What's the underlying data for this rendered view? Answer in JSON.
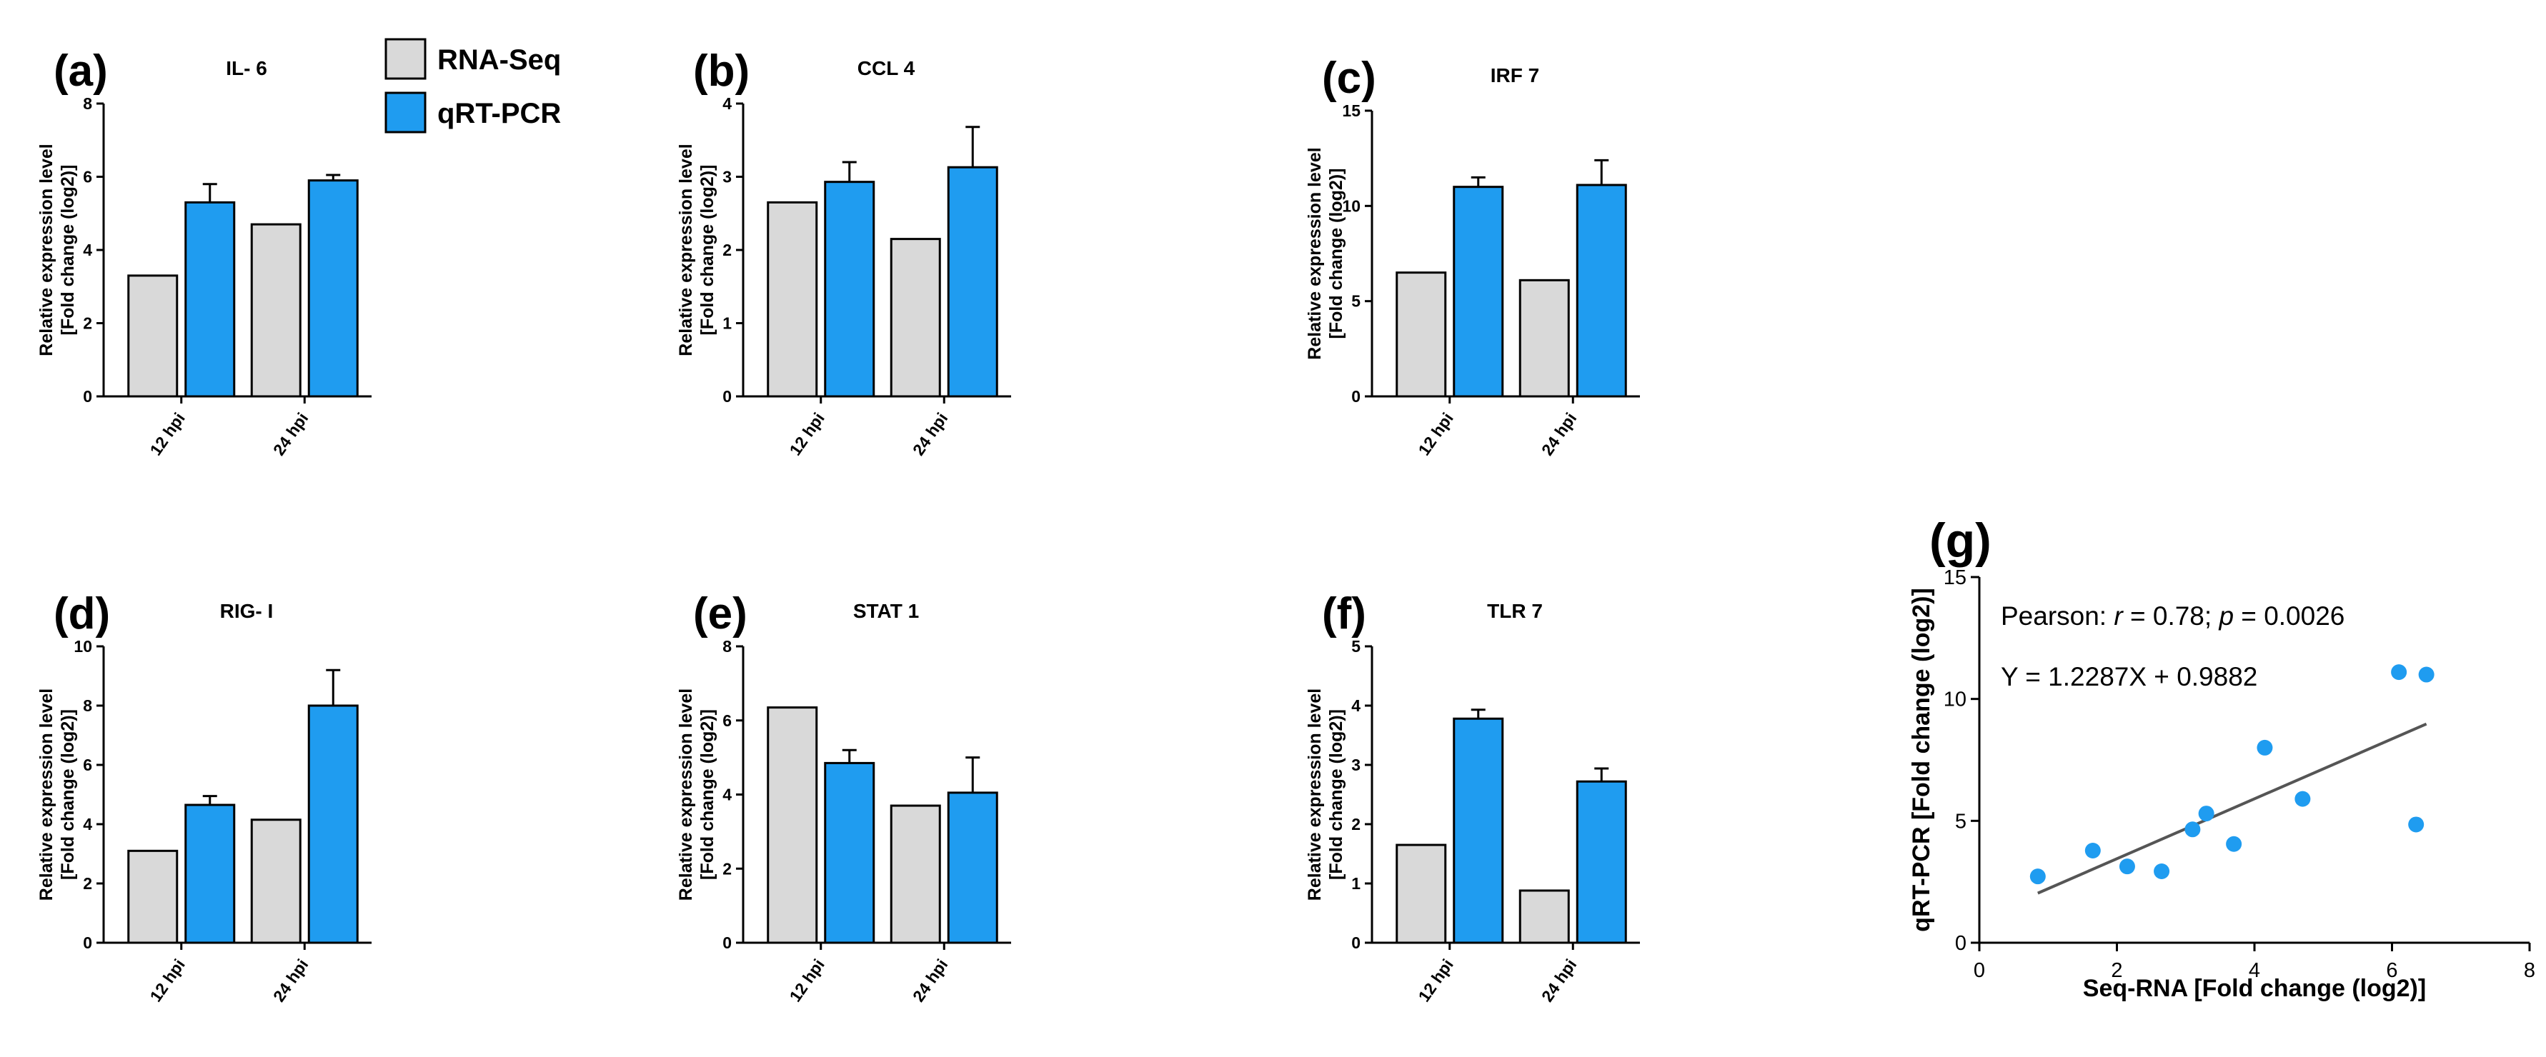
{
  "legend": {
    "items": [
      {
        "name": "RNA-Seq",
        "color": "#d9d9d9"
      },
      {
        "name": "qRT-PCR",
        "color": "#1f9cf0"
      }
    ]
  },
  "chart_data": [
    {
      "panel": "(a)",
      "type": "bar",
      "title": "IL- 6",
      "ylabel": "Relative expression level",
      "ylabel2": "[Fold change (log2)]",
      "categories": [
        "12 hpi",
        "24 hpi"
      ],
      "ylim": [
        0,
        8
      ],
      "yticks": [
        "0",
        "2",
        "4",
        "6",
        "8"
      ],
      "series": [
        {
          "name": "RNA-Seq",
          "values": [
            3.3,
            4.7
          ],
          "errors": [
            0,
            0
          ]
        },
        {
          "name": "qRT-PCR",
          "values": [
            5.3,
            5.9
          ],
          "errors": [
            0.5,
            0.15
          ]
        }
      ]
    },
    {
      "panel": "(b)",
      "type": "bar",
      "title": "CCL 4",
      "ylabel": "Relative expression level",
      "ylabel2": "[Fold change (log2)]",
      "categories": [
        "12 hpi",
        "24 hpi"
      ],
      "ylim": [
        0,
        4
      ],
      "yticks": [
        "0",
        "1",
        "2",
        "3",
        "4"
      ],
      "series": [
        {
          "name": "RNA-Seq",
          "values": [
            2.65,
            2.15
          ],
          "errors": [
            0,
            0
          ]
        },
        {
          "name": "qRT-PCR",
          "values": [
            2.93,
            3.13
          ],
          "errors": [
            0.27,
            0.55
          ]
        }
      ]
    },
    {
      "panel": "(c)",
      "type": "bar",
      "title": "IRF 7",
      "ylabel": "Relative expression level",
      "ylabel2": "[Fold change (log2)]",
      "categories": [
        "12 hpi",
        "24 hpi"
      ],
      "ylim": [
        0,
        15
      ],
      "yticks": [
        "0",
        "5",
        "10",
        "15"
      ],
      "series": [
        {
          "name": "RNA-Seq",
          "values": [
            6.5,
            6.1
          ],
          "errors": [
            0,
            0
          ]
        },
        {
          "name": "qRT-PCR",
          "values": [
            11.0,
            11.1
          ],
          "errors": [
            0.5,
            1.3
          ]
        }
      ]
    },
    {
      "panel": "(d)",
      "type": "bar",
      "title": "RIG- I",
      "ylabel": "Relative expression level",
      "ylabel2": "[Fold change (log2)]",
      "categories": [
        "12 hpi",
        "24 hpi"
      ],
      "ylim": [
        0,
        10
      ],
      "yticks": [
        "0",
        "2",
        "4",
        "6",
        "8",
        "10"
      ],
      "series": [
        {
          "name": "RNA-Seq",
          "values": [
            3.1,
            4.15
          ],
          "errors": [
            0,
            0
          ]
        },
        {
          "name": "qRT-PCR",
          "values": [
            4.65,
            8.0
          ],
          "errors": [
            0.3,
            1.2
          ]
        }
      ]
    },
    {
      "panel": "(e)",
      "type": "bar",
      "title": "STAT 1",
      "ylabel": "Relative expression level",
      "ylabel2": "[Fold change (log2)]",
      "categories": [
        "12 hpi",
        "24 hpi"
      ],
      "ylim": [
        0,
        8
      ],
      "yticks": [
        "0",
        "2",
        "4",
        "6",
        "8"
      ],
      "series": [
        {
          "name": "RNA-Seq",
          "values": [
            6.35,
            3.7
          ],
          "errors": [
            0,
            0
          ]
        },
        {
          "name": "qRT-PCR",
          "values": [
            4.85,
            4.05
          ],
          "errors": [
            0.35,
            0.95
          ]
        }
      ]
    },
    {
      "panel": "(f)",
      "type": "bar",
      "title": "TLR 7",
      "ylabel": "Relative expression level",
      "ylabel2": "[Fold change (log2)]",
      "categories": [
        "12 hpi",
        "24 hpi"
      ],
      "ylim": [
        0,
        5
      ],
      "yticks": [
        "0",
        "1",
        "2",
        "3",
        "4",
        "5"
      ],
      "series": [
        {
          "name": "RNA-Seq",
          "values": [
            1.65,
            0.88
          ],
          "errors": [
            0,
            0
          ]
        },
        {
          "name": "qRT-PCR",
          "values": [
            3.78,
            2.72
          ],
          "errors": [
            0.15,
            0.22
          ]
        }
      ]
    },
    {
      "panel": "(g)",
      "type": "scatter",
      "xlabel": "Seq-RNA [Fold change (log2)]",
      "ylabel": "qRT-PCR [Fold change (log2)]",
      "xlim": [
        0,
        8
      ],
      "ylim": [
        0,
        15
      ],
      "xticks": [
        "0",
        "2",
        "4",
        "6",
        "8"
      ],
      "yticks": [
        "0",
        "5",
        "10",
        "15"
      ],
      "point_color": "#1f9cf0",
      "points": [
        {
          "x": 0.85,
          "y": 2.72
        },
        {
          "x": 1.65,
          "y": 3.78
        },
        {
          "x": 2.15,
          "y": 3.13
        },
        {
          "x": 2.65,
          "y": 2.93
        },
        {
          "x": 3.1,
          "y": 4.65
        },
        {
          "x": 3.3,
          "y": 5.3
        },
        {
          "x": 3.7,
          "y": 4.05
        },
        {
          "x": 4.15,
          "y": 8.0
        },
        {
          "x": 4.7,
          "y": 5.9
        },
        {
          "x": 6.1,
          "y": 11.1
        },
        {
          "x": 6.35,
          "y": 4.85
        },
        {
          "x": 6.5,
          "y": 11.0
        }
      ],
      "fit": {
        "slope": 1.2287,
        "intercept": 0.9882,
        "x_range": [
          0.85,
          6.5
        ]
      },
      "annotation_stat_prefix": "Pearson: ",
      "annotation_r_symbol": "r",
      "annotation_r_value": " = 0.78; ",
      "annotation_p_symbol": "p",
      "annotation_p_value": " = 0.0026",
      "annotation_equation": "Y = 1.2287X + 0.9882"
    }
  ]
}
